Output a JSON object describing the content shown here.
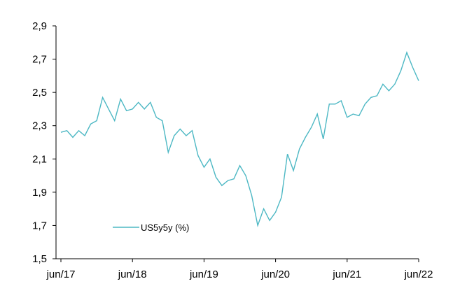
{
  "chart_data": {
    "type": "line",
    "title": "",
    "xlabel": "",
    "ylabel": "",
    "ylim": [
      1.5,
      2.9
    ],
    "y_ticks": [
      "2,9",
      "2,7",
      "2,5",
      "2,3",
      "2,1",
      "1,9",
      "1,7",
      "1,5"
    ],
    "y_tick_values": [
      2.9,
      2.7,
      2.5,
      2.3,
      2.1,
      1.9,
      1.7,
      1.5
    ],
    "x_ticks": [
      "jun/17",
      "jun/18",
      "jun/19",
      "jun/20",
      "jun/21",
      "jun/22"
    ],
    "x_tick_dates": [
      "2017-06",
      "2018-06",
      "2019-06",
      "2020-06",
      "2021-06",
      "2022-06"
    ],
    "grid": false,
    "legend_position": "lower-left",
    "series": [
      {
        "name": "US5y5y (%)",
        "color": "#4db8c4",
        "x": [
          "2017-06",
          "2017-07",
          "2017-08",
          "2017-09",
          "2017-10",
          "2017-11",
          "2017-12",
          "2018-01",
          "2018-02",
          "2018-03",
          "2018-04",
          "2018-05",
          "2018-06",
          "2018-07",
          "2018-08",
          "2018-09",
          "2018-10",
          "2018-11",
          "2018-12",
          "2019-01",
          "2019-02",
          "2019-03",
          "2019-04",
          "2019-05",
          "2019-06",
          "2019-07",
          "2019-08",
          "2019-09",
          "2019-10",
          "2019-11",
          "2019-12",
          "2020-01",
          "2020-02",
          "2020-03",
          "2020-04",
          "2020-05",
          "2020-06",
          "2020-07",
          "2020-08",
          "2020-09",
          "2020-10",
          "2020-11",
          "2020-12",
          "2021-01",
          "2021-02",
          "2021-03",
          "2021-04",
          "2021-05",
          "2021-06",
          "2021-07",
          "2021-08",
          "2021-09",
          "2021-10",
          "2021-11",
          "2021-12",
          "2022-01",
          "2022-02",
          "2022-03",
          "2022-04",
          "2022-05",
          "2022-06"
        ],
        "values": [
          2.26,
          2.27,
          2.23,
          2.27,
          2.24,
          2.31,
          2.33,
          2.47,
          2.4,
          2.33,
          2.46,
          2.39,
          2.4,
          2.44,
          2.4,
          2.44,
          2.35,
          2.33,
          2.14,
          2.24,
          2.28,
          2.24,
          2.27,
          2.12,
          2.05,
          2.1,
          1.99,
          1.94,
          1.97,
          1.98,
          2.06,
          2.0,
          1.88,
          1.7,
          1.8,
          1.73,
          1.78,
          1.87,
          2.13,
          2.03,
          2.16,
          2.23,
          2.29,
          2.37,
          2.22,
          2.43,
          2.43,
          2.45,
          2.35,
          2.37,
          2.36,
          2.43,
          2.47,
          2.48,
          2.55,
          2.51,
          2.55,
          2.63,
          2.74,
          2.65,
          2.57
        ]
      }
    ]
  }
}
